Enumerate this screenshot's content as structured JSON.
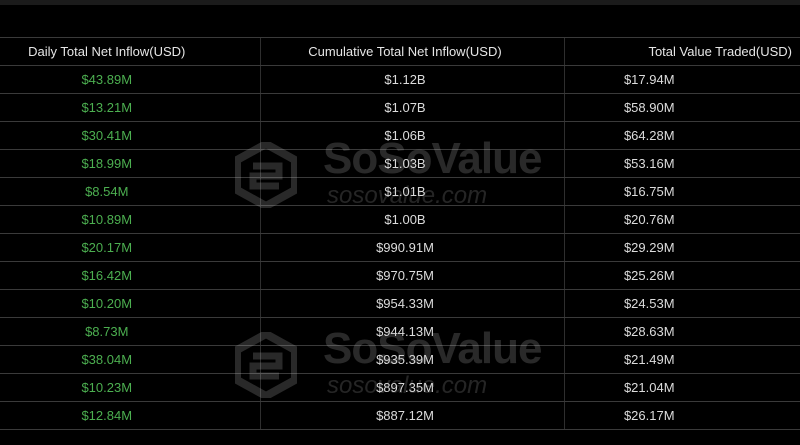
{
  "table": {
    "headers": [
      "Daily Total Net Inflow(USD)",
      "Cumulative Total Net Inflow(USD)",
      "Total Value Traded(USD)"
    ],
    "rows": [
      [
        "$43.89M",
        "$1.12B",
        "$17.94M"
      ],
      [
        "$13.21M",
        "$1.07B",
        "$58.90M"
      ],
      [
        "$30.41M",
        "$1.06B",
        "$64.28M"
      ],
      [
        "$18.99M",
        "$1.03B",
        "$53.16M"
      ],
      [
        "$8.54M",
        "$1.01B",
        "$16.75M"
      ],
      [
        "$10.89M",
        "$1.00B",
        "$20.76M"
      ],
      [
        "$20.17M",
        "$990.91M",
        "$29.29M"
      ],
      [
        "$16.42M",
        "$970.75M",
        "$25.26M"
      ],
      [
        "$10.20M",
        "$954.33M",
        "$24.53M"
      ],
      [
        "$8.73M",
        "$944.13M",
        "$28.63M"
      ],
      [
        "$38.04M",
        "$935.39M",
        "$21.49M"
      ],
      [
        "$10.23M",
        "$897.35M",
        "$21.04M"
      ],
      [
        "$12.84M",
        "$887.12M",
        "$26.17M"
      ]
    ]
  },
  "watermark": {
    "brand": "SoSoValue",
    "url": "sosovalue.com"
  },
  "colors": {
    "positive": "#4caf50",
    "background": "#000000"
  }
}
